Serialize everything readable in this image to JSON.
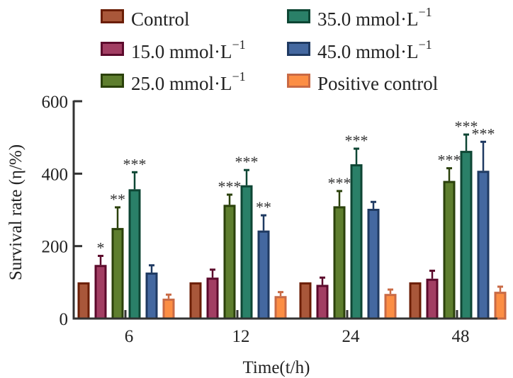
{
  "chart_data": {
    "type": "bar",
    "title": "",
    "xlabel": "Time(t/h)",
    "ylabel": "Survival rate (η/%)",
    "categories": [
      "6",
      "12",
      "24",
      "48"
    ],
    "ylim": [
      0,
      600
    ],
    "yticks": [
      0,
      200,
      400,
      600
    ],
    "grid": false,
    "legend_position": "top",
    "series": [
      {
        "name": "Control",
        "color": "#A9573A",
        "edge": "#6B1E05",
        "values": [
          100,
          100,
          100,
          100
        ],
        "errors": [
          0,
          0,
          0,
          0
        ],
        "significance": [
          "",
          "",
          "",
          ""
        ]
      },
      {
        "name": "15.0 mmol·L⁻¹",
        "color": "#A23E63",
        "edge": "#5C0A2C",
        "values": [
          148,
          113,
          93,
          110
        ],
        "errors": [
          25,
          22,
          20,
          22
        ],
        "significance": [
          "*",
          "",
          "",
          ""
        ]
      },
      {
        "name": "25.0 mmol·L⁻¹",
        "color": "#5E7E2E",
        "edge": "#2B410B",
        "values": [
          250,
          314,
          310,
          380
        ],
        "errors": [
          57,
          28,
          42,
          35
        ],
        "significance": [
          "**",
          "***",
          "***",
          "***"
        ]
      },
      {
        "name": "35.0 mmol·L⁻¹",
        "color": "#2A8068",
        "edge": "#0E4634",
        "values": [
          357,
          368,
          426,
          463
        ],
        "errors": [
          47,
          42,
          43,
          45
        ],
        "significance": [
          "***",
          "***",
          "***",
          "***"
        ]
      },
      {
        "name": "45.0 mmol·L⁻¹",
        "color": "#4468A0",
        "edge": "#1F3A62",
        "values": [
          127,
          243,
          303,
          408
        ],
        "errors": [
          20,
          42,
          19,
          80
        ],
        "significance": [
          "",
          "**",
          "",
          "***"
        ]
      },
      {
        "name": "Positive control",
        "color": "#FC8E44",
        "edge": "#C96A45",
        "values": [
          55,
          62,
          68,
          74
        ],
        "errors": [
          11,
          11,
          12,
          14
        ],
        "significance": [
          "",
          "",
          "",
          ""
        ]
      }
    ]
  },
  "legend": {
    "items": [
      {
        "label": "Control",
        "sup": ""
      },
      {
        "label": "15.0 mmol·L",
        "sup": "−1"
      },
      {
        "label": "25.0 mmol·L",
        "sup": "−1"
      },
      {
        "label": "35.0 mmol·L",
        "sup": "−1"
      },
      {
        "label": "45.0 mmol·L",
        "sup": "−1"
      },
      {
        "label": "Positive control",
        "sup": ""
      }
    ]
  },
  "axes": {
    "y_label_main": "Survival rate",
    "y_label_unit": "(η/%)",
    "x_label": "Time(t/h)"
  }
}
